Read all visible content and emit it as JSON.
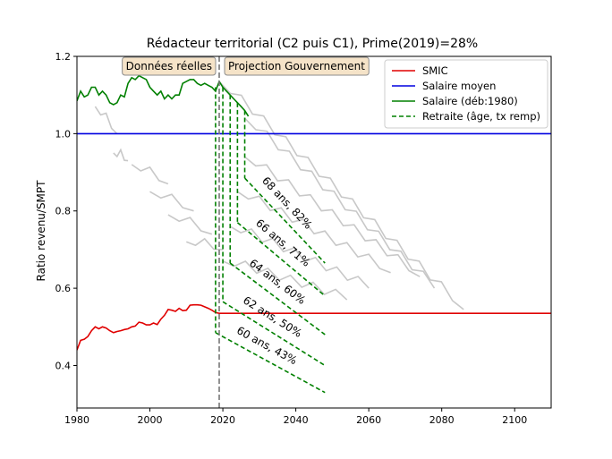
{
  "chart_data": {
    "type": "line",
    "title": "Rédacteur territorial (C2 puis C1), Prime(2019)=28%",
    "xlabel": "",
    "ylabel": "Ratio revenu/SMPT",
    "xlim": [
      1980,
      2110
    ],
    "ylim": [
      0.29,
      1.2
    ],
    "xticks": [
      1980,
      2000,
      2020,
      2040,
      2060,
      2080,
      2100
    ],
    "yticks": [
      0.4,
      0.6,
      0.8,
      1.0,
      1.2
    ],
    "xtick_labels": [
      "1980",
      "2000",
      "2020",
      "2040",
      "2060",
      "2080",
      "2100"
    ],
    "ytick_labels": [
      "0.4",
      "0.6",
      "0.8",
      "1.0",
      "1.2"
    ],
    "divider_year": 2019,
    "region_labels": {
      "left": "Données réelles",
      "right": "Projection Gouvernement"
    },
    "legend": {
      "position": "top-right",
      "entries": [
        {
          "label": "SMIC",
          "color": "#e00000",
          "style": "solid"
        },
        {
          "label": "Salaire moyen",
          "color": "#0000e0",
          "style": "solid"
        },
        {
          "label": "Salaire (déb:1980)",
          "color": "#008000",
          "style": "solid"
        },
        {
          "label": "Retraite (âge, tx remp)",
          "color": "#008000",
          "style": "dashed"
        }
      ]
    },
    "series": [
      {
        "name": "SMIC",
        "color": "#e00000",
        "points": [
          [
            1980,
            0.44
          ],
          [
            1981,
            0.465
          ],
          [
            1982,
            0.468
          ],
          [
            1983,
            0.475
          ],
          [
            1984,
            0.49
          ],
          [
            1985,
            0.5
          ],
          [
            1986,
            0.495
          ],
          [
            1987,
            0.5
          ],
          [
            1988,
            0.497
          ],
          [
            1989,
            0.49
          ],
          [
            1990,
            0.485
          ],
          [
            1991,
            0.488
          ],
          [
            1992,
            0.49
          ],
          [
            1993,
            0.493
          ],
          [
            1994,
            0.495
          ],
          [
            1995,
            0.5
          ],
          [
            1996,
            0.502
          ],
          [
            1997,
            0.512
          ],
          [
            1998,
            0.51
          ],
          [
            1999,
            0.505
          ],
          [
            2000,
            0.505
          ],
          [
            2001,
            0.51
          ],
          [
            2002,
            0.506
          ],
          [
            2003,
            0.52
          ],
          [
            2004,
            0.53
          ],
          [
            2005,
            0.545
          ],
          [
            2006,
            0.543
          ],
          [
            2007,
            0.54
          ],
          [
            2008,
            0.548
          ],
          [
            2009,
            0.542
          ],
          [
            2010,
            0.543
          ],
          [
            2011,
            0.556
          ],
          [
            2012,
            0.557
          ],
          [
            2013,
            0.557
          ],
          [
            2014,
            0.556
          ],
          [
            2015,
            0.552
          ],
          [
            2016,
            0.548
          ],
          [
            2017,
            0.543
          ],
          [
            2018,
            0.537
          ],
          [
            2019,
            0.535
          ],
          [
            2110,
            0.535
          ]
        ]
      },
      {
        "name": "Salaire moyen",
        "color": "#0000e0",
        "points": [
          [
            1980,
            1.0
          ],
          [
            2110,
            1.0
          ]
        ]
      },
      {
        "name": "Salaire (déb:1980)",
        "color": "#008000",
        "points": [
          [
            1980,
            1.085
          ],
          [
            1981,
            1.11
          ],
          [
            1982,
            1.095
          ],
          [
            1983,
            1.1
          ],
          [
            1984,
            1.12
          ],
          [
            1985,
            1.12
          ],
          [
            1986,
            1.1
          ],
          [
            1987,
            1.11
          ],
          [
            1988,
            1.1
          ],
          [
            1989,
            1.08
          ],
          [
            1990,
            1.075
          ],
          [
            1991,
            1.08
          ],
          [
            1992,
            1.1
          ],
          [
            1993,
            1.095
          ],
          [
            1994,
            1.13
          ],
          [
            1995,
            1.145
          ],
          [
            1996,
            1.14
          ],
          [
            1997,
            1.15
          ],
          [
            1998,
            1.145
          ],
          [
            1999,
            1.14
          ],
          [
            2000,
            1.12
          ],
          [
            2001,
            1.11
          ],
          [
            2002,
            1.1
          ],
          [
            2003,
            1.11
          ],
          [
            2004,
            1.09
          ],
          [
            2005,
            1.1
          ],
          [
            2006,
            1.09
          ],
          [
            2007,
            1.1
          ],
          [
            2008,
            1.1
          ],
          [
            2009,
            1.13
          ],
          [
            2010,
            1.135
          ],
          [
            2011,
            1.14
          ],
          [
            2012,
            1.14
          ],
          [
            2013,
            1.13
          ],
          [
            2014,
            1.125
          ],
          [
            2015,
            1.13
          ],
          [
            2016,
            1.125
          ],
          [
            2017,
            1.12
          ],
          [
            2018,
            1.11
          ],
          [
            2019,
            1.135
          ],
          [
            2020,
            1.12
          ],
          [
            2021,
            1.11
          ],
          [
            2022,
            1.1
          ],
          [
            2023,
            1.09
          ],
          [
            2024,
            1.08
          ],
          [
            2025,
            1.07
          ],
          [
            2026,
            1.06
          ],
          [
            2027,
            1.045
          ]
        ]
      }
    ],
    "retirement": [
      {
        "label": "60 ans, 43%",
        "year": 2018,
        "salary": 1.12,
        "points": [
          [
            2018,
            0.485
          ],
          [
            2048,
            0.33
          ]
        ]
      },
      {
        "label": "62 ans, 50%",
        "year": 2020,
        "salary": 1.12,
        "points": [
          [
            2020,
            0.565
          ],
          [
            2048,
            0.4
          ]
        ]
      },
      {
        "label": "64 ans, 60%",
        "year": 2022,
        "salary": 1.1,
        "points": [
          [
            2022,
            0.665
          ],
          [
            2048,
            0.48
          ]
        ]
      },
      {
        "label": "66 ans, 71%",
        "year": 2024,
        "salary": 1.08,
        "points": [
          [
            2024,
            0.77
          ],
          [
            2048,
            0.58
          ]
        ]
      },
      {
        "label": "68 ans, 82%",
        "year": 2026,
        "salary": 1.06,
        "points": [
          [
            2026,
            0.885
          ],
          [
            2048,
            0.665
          ]
        ]
      }
    ],
    "grey_cohorts": [
      {
        "start": [
          1985,
          1.07
        ],
        "end": [
          1991,
          1.0
        ]
      },
      {
        "start": [
          1990,
          0.95
        ],
        "end": [
          1994,
          0.93
        ]
      },
      {
        "start": [
          1995,
          0.92
        ],
        "end": [
          2005,
          0.87
        ]
      },
      {
        "start": [
          2000,
          0.85
        ],
        "end": [
          2012,
          0.8
        ]
      },
      {
        "start": [
          2005,
          0.79
        ],
        "end": [
          2017,
          0.74
        ]
      },
      {
        "start": [
          2010,
          0.72
        ],
        "end": [
          2020,
          0.7
        ]
      },
      {
        "start": [
          2019,
          1.135
        ],
        "end": [
          2086,
          0.545
        ]
      },
      {
        "start": [
          2026,
          1.04
        ],
        "end": [
          2078,
          0.6
        ]
      },
      {
        "start": [
          2026,
          0.94
        ],
        "end": [
          2074,
          0.63
        ]
      },
      {
        "start": [
          2024,
          0.85
        ],
        "end": [
          2066,
          0.64
        ]
      },
      {
        "start": [
          2022,
          0.76
        ],
        "end": [
          2060,
          0.6
        ]
      },
      {
        "start": [
          2020,
          0.67
        ],
        "end": [
          2054,
          0.57
        ]
      }
    ]
  }
}
